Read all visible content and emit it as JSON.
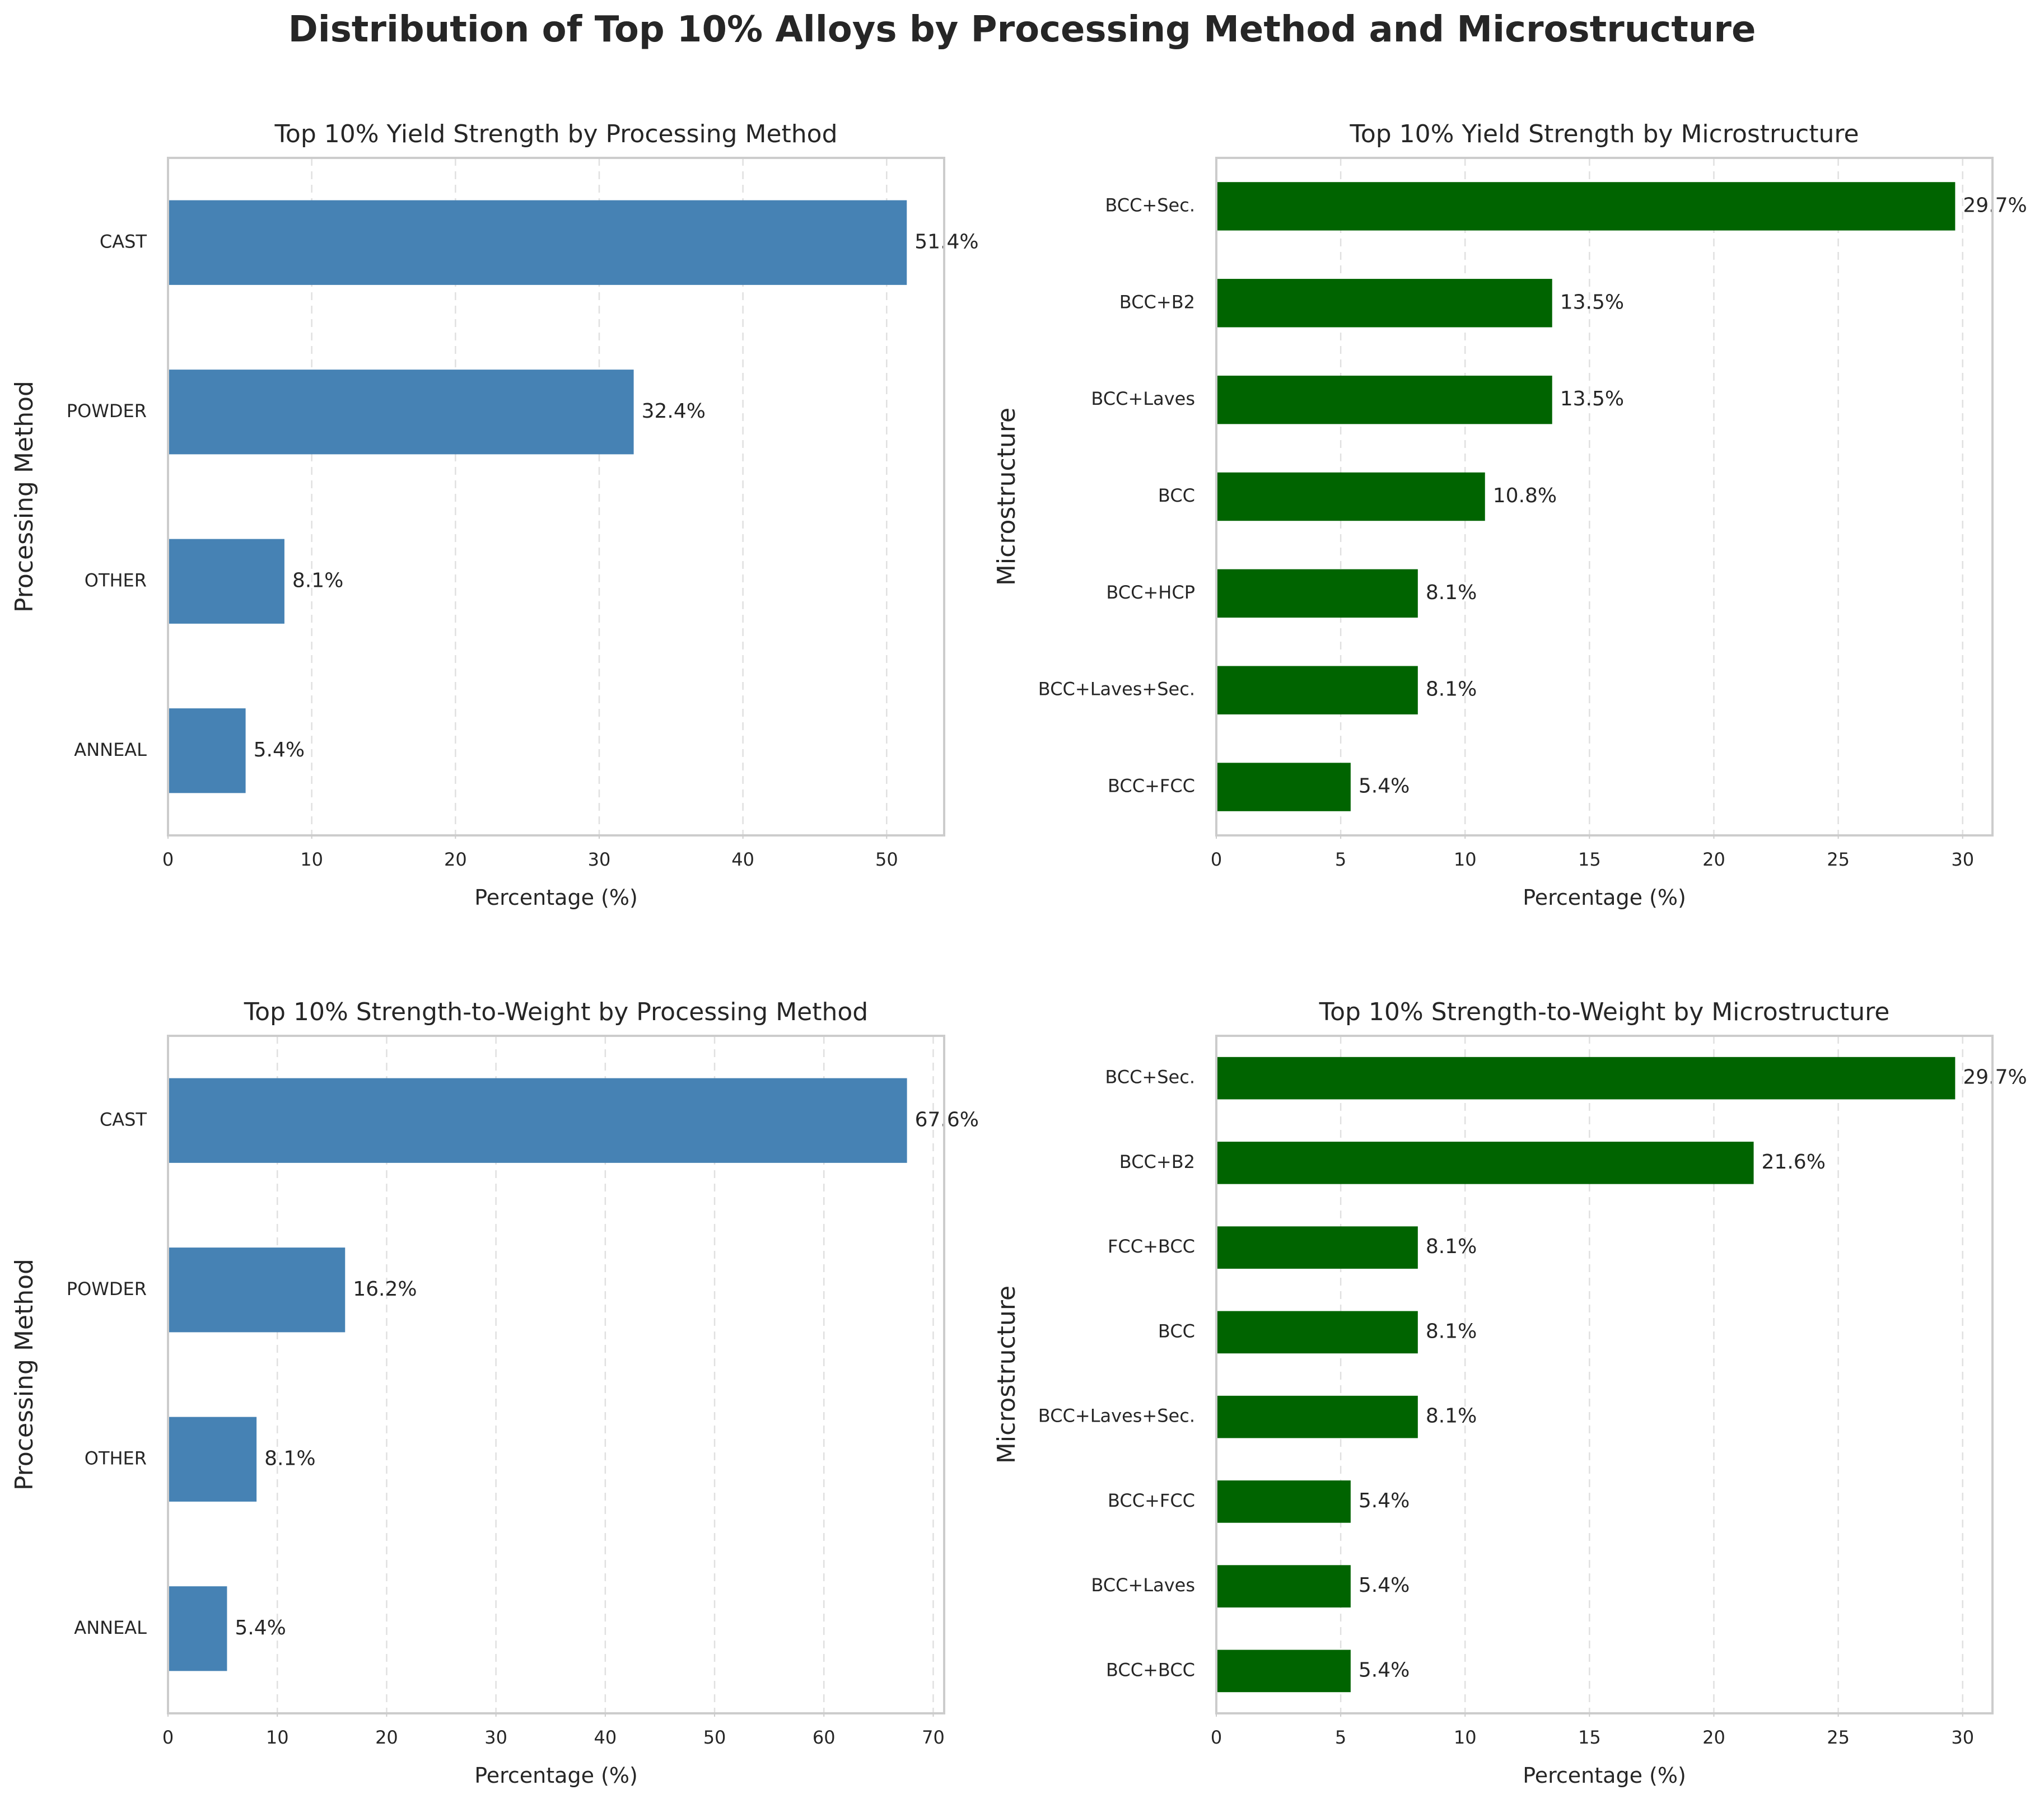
{
  "figure": {
    "title": "Distribution of Top 10% Alloys by Processing Method and Microstructure"
  },
  "colors": {
    "processing": "#4682B4",
    "microstructure": "#006400",
    "text": "#262626",
    "frame": "#cccccc",
    "grid": "#d4d4d4"
  },
  "chart_data": [
    {
      "type": "bar",
      "orientation": "horizontal",
      "title": "Top 10% Yield Strength by Processing Method",
      "xlabel": "Percentage (%)",
      "ylabel": "Processing Method",
      "categories": [
        "CAST",
        "POWDER",
        "OTHER",
        "ANNEAL"
      ],
      "values": [
        51.4,
        32.4,
        8.1,
        5.4
      ],
      "data_labels": [
        "51.4%",
        "32.4%",
        "8.1%",
        "5.4%"
      ],
      "xlim": [
        0,
        54
      ],
      "xticks": [
        0,
        10,
        20,
        30,
        40,
        50
      ],
      "color": "#4682B4",
      "grid": "x-dashed"
    },
    {
      "type": "bar",
      "orientation": "horizontal",
      "title": "Top 10% Yield Strength by Microstructure",
      "xlabel": "Percentage (%)",
      "ylabel": "Microstructure",
      "categories": [
        "BCC+Sec.",
        "BCC+B2",
        "BCC+Laves",
        "BCC",
        "BCC+HCP",
        "BCC+Laves+Sec.",
        "BCC+FCC"
      ],
      "values": [
        29.7,
        13.5,
        13.5,
        10.8,
        8.1,
        8.1,
        5.4
      ],
      "data_labels": [
        "29.7%",
        "13.5%",
        "13.5%",
        "10.8%",
        "8.1%",
        "8.1%",
        "5.4%"
      ],
      "xlim": [
        0,
        31.2
      ],
      "xticks": [
        0,
        5,
        10,
        15,
        20,
        25,
        30
      ],
      "color": "#006400",
      "grid": "x-dashed"
    },
    {
      "type": "bar",
      "orientation": "horizontal",
      "title": "Top 10% Strength-to-Weight by Processing Method",
      "xlabel": "Percentage (%)",
      "ylabel": "Processing Method",
      "categories": [
        "CAST",
        "POWDER",
        "OTHER",
        "ANNEAL"
      ],
      "values": [
        67.6,
        16.2,
        8.1,
        5.4
      ],
      "data_labels": [
        "67.6%",
        "16.2%",
        "8.1%",
        "5.4%"
      ],
      "xlim": [
        0,
        71
      ],
      "xticks": [
        0,
        10,
        20,
        30,
        40,
        50,
        60,
        70
      ],
      "color": "#4682B4",
      "grid": "x-dashed"
    },
    {
      "type": "bar",
      "orientation": "horizontal",
      "title": "Top 10% Strength-to-Weight by Microstructure",
      "xlabel": "Percentage (%)",
      "ylabel": "Microstructure",
      "categories": [
        "BCC+Sec.",
        "BCC+B2",
        "FCC+BCC",
        "BCC",
        "BCC+Laves+Sec.",
        "BCC+FCC",
        "BCC+Laves",
        "BCC+BCC"
      ],
      "values": [
        29.7,
        21.6,
        8.1,
        8.1,
        8.1,
        5.4,
        5.4,
        5.4
      ],
      "data_labels": [
        "29.7%",
        "21.6%",
        "8.1%",
        "8.1%",
        "8.1%",
        "5.4%",
        "5.4%",
        "5.4%"
      ],
      "xlim": [
        0,
        31.2
      ],
      "xticks": [
        0,
        5,
        10,
        15,
        20,
        25,
        30
      ],
      "color": "#006400",
      "grid": "x-dashed"
    }
  ]
}
